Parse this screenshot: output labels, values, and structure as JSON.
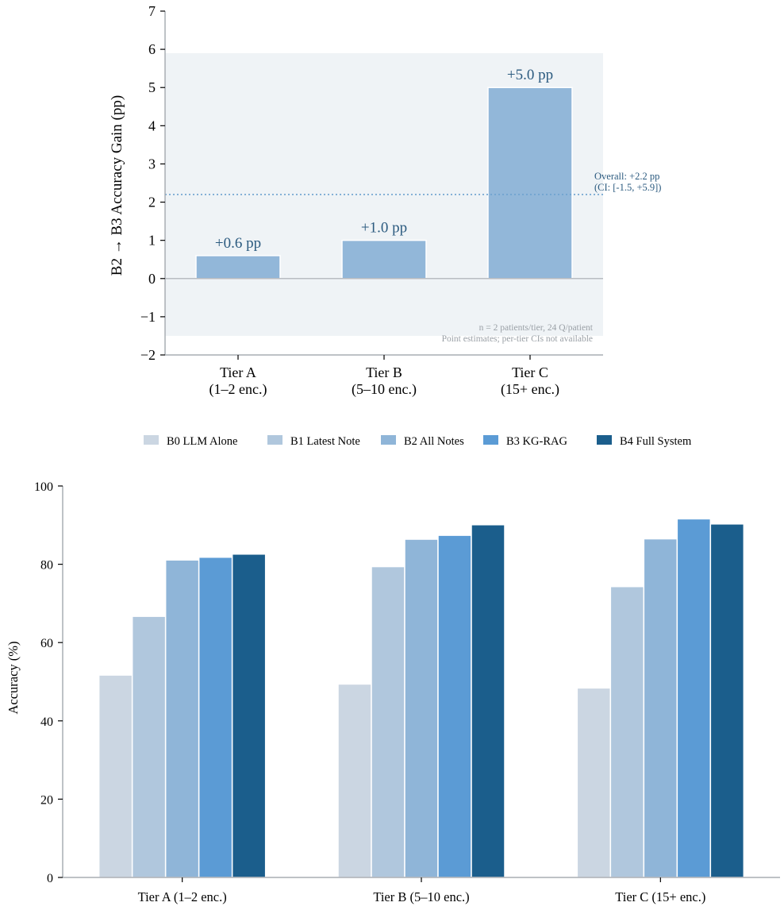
{
  "chart_data": [
    {
      "type": "bar",
      "categories": [
        "Tier A\n(1–2 enc.)",
        "Tier B\n(5–10 enc.)",
        "Tier C\n(15+ enc.)"
      ],
      "values": [
        0.6,
        1.0,
        5.0
      ],
      "bar_labels": [
        "+0.6 pp",
        "+1.0 pp",
        "+5.0 pp"
      ],
      "title": "",
      "xlabel": "",
      "ylabel": "B2 → B3 Accuracy Gain (pp)",
      "ylim": [
        -2,
        7
      ],
      "yticks": [
        -2,
        -1,
        0,
        1,
        2,
        3,
        4,
        5,
        6,
        7
      ],
      "ytick_labels": [
        "−2",
        "−1",
        "0",
        "1",
        "2",
        "3",
        "4",
        "5",
        "6",
        "7"
      ],
      "shaded_band": [
        -1.5,
        5.9
      ],
      "overall_line": 2.2,
      "overall_annotation": [
        "Overall: +2.2 pp",
        "(CI: [-1.5, +5.9])"
      ],
      "footnote": [
        "n = 2 patients/tier, 24 Q/patient",
        "Point estimates; per-tier CIs not available"
      ],
      "colors": {
        "bar": "#92b7d9",
        "band": "#eff3f6",
        "label": "#2b5a7f",
        "overall": "#6da2cf",
        "footnote": "#9aa0a6"
      },
      "grid": false
    },
    {
      "type": "bar",
      "categories": [
        "Tier A (1–2 enc.)",
        "Tier B (5–10 enc.)",
        "Tier C (15+ enc.)"
      ],
      "series": [
        {
          "name": "B0 LLM Alone",
          "values": [
            51.7,
            49.4,
            48.4
          ],
          "color": "#cbd6e2"
        },
        {
          "name": "B1 Latest Note",
          "values": [
            66.7,
            79.4,
            74.3
          ],
          "color": "#b0c7dd"
        },
        {
          "name": "B2 All Notes",
          "values": [
            81.1,
            86.4,
            86.5
          ],
          "color": "#8fb5d8"
        },
        {
          "name": "B3 KG-RAG",
          "values": [
            81.8,
            87.4,
            91.6
          ],
          "color": "#5b9bd5"
        },
        {
          "name": "B4 Full System",
          "values": [
            82.6,
            90.1,
            90.3
          ],
          "color": "#1b5e8c"
        }
      ],
      "title": "",
      "xlabel": "",
      "ylabel": "Accuracy (%)",
      "ylim": [
        0,
        100
      ],
      "yticks": [
        0,
        20,
        40,
        60,
        80,
        100
      ],
      "legend": "top-center",
      "grid": false
    }
  ]
}
